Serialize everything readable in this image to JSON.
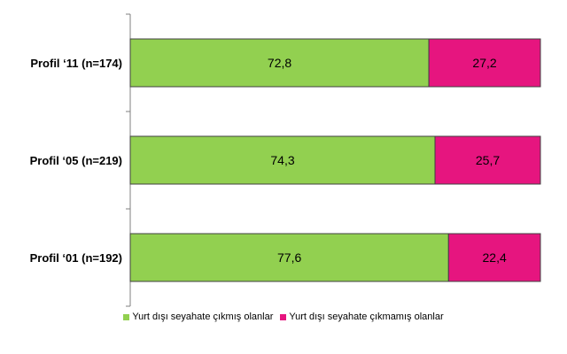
{
  "chart_data": {
    "type": "bar",
    "orientation": "horizontal",
    "stacked": true,
    "categories": [
      "Profil ‘11 (n=174)",
      "Profil ‘05 (n=219)",
      "Profil ‘01 (n=192)"
    ],
    "series": [
      {
        "name": "Yurt dışı seyahate çıkmış olanlar",
        "values": [
          72.8,
          74.3,
          77.6
        ],
        "labels": [
          "72,8",
          "74,3",
          "77,6"
        ],
        "color": "#92d050"
      },
      {
        "name": "Yurt dışı seyahate çıkmamış olanlar",
        "values": [
          27.2,
          25.7,
          22.4
        ],
        "labels": [
          "27,2",
          "25,7",
          "22,4"
        ],
        "color": "#e6157f"
      }
    ],
    "xlim": [
      0,
      100
    ],
    "legend_position": "bottom",
    "grid": false
  }
}
